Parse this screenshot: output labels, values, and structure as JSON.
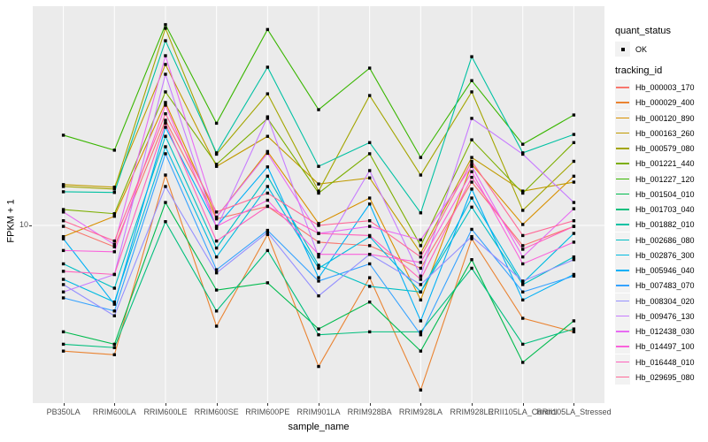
{
  "page": {
    "background": "#FFFFFF"
  },
  "panel": {
    "background": "#EBEBEB",
    "gridline_color": "#FFFFFF"
  },
  "axes": {
    "x": {
      "title": "sample_name"
    },
    "y": {
      "title": "FPKM + 1",
      "tick10": "10",
      "scale": "log10"
    }
  },
  "legend": {
    "position": "right",
    "quant_status": {
      "title": "quant_status",
      "items": [
        {
          "label": "OK",
          "shape": "filled-square",
          "color": "#000000"
        }
      ]
    },
    "tracking_id": {
      "title": "tracking_id"
    }
  },
  "chart_data": {
    "type": "line",
    "title": "",
    "xlabel": "sample_name",
    "ylabel": "FPKM + 1",
    "y_scale": "log10",
    "y_ticks": [
      10
    ],
    "grid": "major",
    "legend_position": "right",
    "point_shape": "filled-square-black",
    "categories": [
      "PB350LA",
      "RRIM600LA",
      "RRIM600LE",
      "RRIM600SE",
      "RRIM600PE",
      "RRIM901LA",
      "RRIM928BA",
      "RRIM928LA",
      "RRIM928LE",
      "RRII105LA_Control",
      "RRII105LA_Stressed"
    ],
    "series": [
      {
        "name": "Hb_000003_170",
        "color": "#F8766D",
        "values": [
          9.9,
          8.0,
          29.9,
          10.7,
          12.2,
          8.4,
          8.1,
          6.4,
          15.7,
          8.1,
          9.9
        ]
      },
      {
        "name": "Hb_000029_400",
        "color": "#EA8331",
        "values": [
          2.7,
          2.6,
          16.9,
          3.5,
          9.1,
          2.3,
          5.8,
          1.8,
          8.7,
          3.8,
          3.3
        ]
      },
      {
        "name": "Hb_000120_890",
        "color": "#D89000",
        "values": [
          8.9,
          11.0,
          36.0,
          10.9,
          21.6,
          10.2,
          13.3,
          4.6,
          18.9,
          10.1,
          16.7
        ]
      },
      {
        "name": "Hb_000163_260",
        "color": "#C09B00",
        "values": [
          15.3,
          14.9,
          53.5,
          18.5,
          25.3,
          15.4,
          16.4,
          7.5,
          20.3,
          14.3,
          15.7
        ]
      },
      {
        "name": "Hb_000579_080",
        "color": "#A3A500",
        "values": [
          15.0,
          14.6,
          78.0,
          21.0,
          39.4,
          14.3,
          38.7,
          16.9,
          40.2,
          11.7,
          19.5
        ]
      },
      {
        "name": "Hb_001221_440",
        "color": "#7CAE00",
        "values": [
          11.8,
          11.3,
          40.2,
          18.9,
          30.5,
          14.0,
          21.1,
          8.1,
          24.4,
          14.0,
          23.7
        ]
      },
      {
        "name": "Hb_001227_120",
        "color": "#39B600",
        "values": [
          25.6,
          21.9,
          81.0,
          29.0,
          77.0,
          33.4,
          51.5,
          20.3,
          45.2,
          23.3,
          31.6
        ]
      },
      {
        "name": "Hb_001504_010",
        "color": "#00BB4E",
        "values": [
          3.3,
          2.9,
          12.7,
          5.1,
          5.5,
          3.4,
          4.5,
          2.7,
          7.0,
          2.4,
          3.7
        ]
      },
      {
        "name": "Hb_001703_040",
        "color": "#00BF7D",
        "values": [
          2.9,
          2.8,
          10.4,
          4.1,
          7.7,
          3.2,
          3.3,
          3.3,
          6.4,
          2.9,
          3.4
        ]
      },
      {
        "name": "Hb_001882_010",
        "color": "#00C1A3",
        "values": [
          14.2,
          14.1,
          68.5,
          21.3,
          52.0,
          18.5,
          23.7,
          11.4,
          58.0,
          21.3,
          25.8
        ]
      },
      {
        "name": "Hb_002686_080",
        "color": "#00BFC4",
        "values": [
          6.7,
          5.2,
          25.3,
          7.9,
          16.7,
          6.6,
          5.3,
          5.0,
          12.1,
          5.4,
          7.2
        ]
      },
      {
        "name": "Hb_002876_300",
        "color": "#00BAE0",
        "values": [
          5.7,
          4.5,
          22.7,
          7.2,
          15.0,
          6.4,
          8.9,
          5.0,
          13.3,
          5.5,
          9.2
        ]
      },
      {
        "name": "Hb_005946_040",
        "color": "#00B0F6",
        "values": [
          8.7,
          4.4,
          27.8,
          9.9,
          18.4,
          5.8,
          12.5,
          3.7,
          14.6,
          4.6,
          6.0
        ]
      },
      {
        "name": "Hb_007483_070",
        "color": "#35A2FF",
        "values": [
          4.7,
          4.1,
          21.1,
          6.3,
          9.5,
          5.6,
          6.7,
          3.2,
          9.6,
          5.0,
          5.9
        ]
      },
      {
        "name": "Hb_008304_020",
        "color": "#9590FF",
        "values": [
          5.4,
          3.9,
          15.0,
          6.1,
          9.3,
          4.8,
          7.4,
          5.4,
          8.9,
          5.6,
          7.0
        ]
      },
      {
        "name": "Hb_009476_130",
        "color": "#C77CFF",
        "values": [
          5.0,
          6.0,
          48.3,
          9.7,
          31.0,
          7.2,
          17.7,
          5.9,
          30.5,
          21.0,
          12.7
        ]
      },
      {
        "name": "Hb_012438_030",
        "color": "#E76BF3",
        "values": [
          11.5,
          8.2,
          58.6,
          10.9,
          21.2,
          9.2,
          9.9,
          8.6,
          18.5,
          7.2,
          11.9
        ]
      },
      {
        "name": "Hb_014497_100",
        "color": "#FA62DB",
        "values": [
          7.7,
          7.6,
          35.0,
          9.9,
          13.0,
          7.4,
          7.4,
          6.8,
          17.5,
          6.7,
          8.4
        ]
      },
      {
        "name": "Hb_016448_010",
        "color": "#FF62BC",
        "values": [
          6.2,
          6.0,
          29.0,
          8.5,
          12.2,
          9.2,
          9.0,
          5.7,
          16.5,
          7.8,
          9.9
        ]
      },
      {
        "name": "Hb_029695_080",
        "color": "#FF6A98",
        "values": [
          10.5,
          8.5,
          32.0,
          11.5,
          14.0,
          10.0,
          10.5,
          7.2,
          19.5,
          9.0,
          10.5
        ]
      }
    ]
  }
}
